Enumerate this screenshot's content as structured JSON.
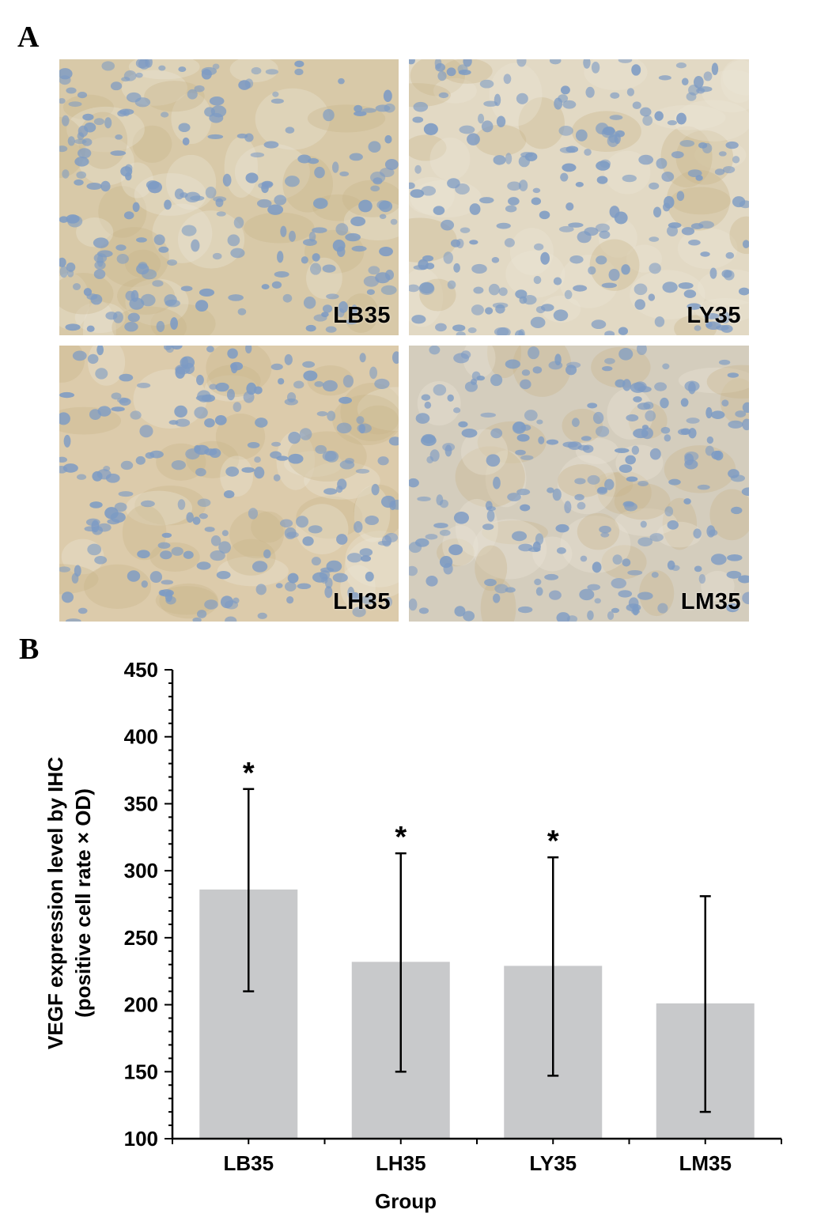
{
  "panels": {
    "a_letter": "A",
    "b_letter": "B"
  },
  "micrographs": [
    {
      "label": "LB35",
      "tint": "#d8c9a8"
    },
    {
      "label": "LY35",
      "tint": "#e2d9c4"
    },
    {
      "label": "LH35",
      "tint": "#dccbab"
    },
    {
      "label": "LM35",
      "tint": "#d4cdbd"
    }
  ],
  "colors": {
    "bar": "#c8c9cb",
    "axis": "#000000",
    "nucleus": "#7d9bc4"
  },
  "chart_data": {
    "type": "bar",
    "categories": [
      "LB35",
      "LH35",
      "LY35",
      "LM35"
    ],
    "values": [
      286,
      232,
      229,
      201
    ],
    "error_upper": [
      361,
      313,
      310,
      281
    ],
    "error_lower": [
      210,
      150,
      147,
      120
    ],
    "significance": [
      "*",
      "*",
      "*",
      ""
    ],
    "xlabel": "Group",
    "ylabel_line1": "VEGF expression level by IHC",
    "ylabel_line2": "(positive cell rate × OD)",
    "ylim": [
      100,
      450
    ],
    "yticks": [
      "100",
      "150",
      "200",
      "250",
      "300",
      "350",
      "400",
      "450"
    ]
  }
}
